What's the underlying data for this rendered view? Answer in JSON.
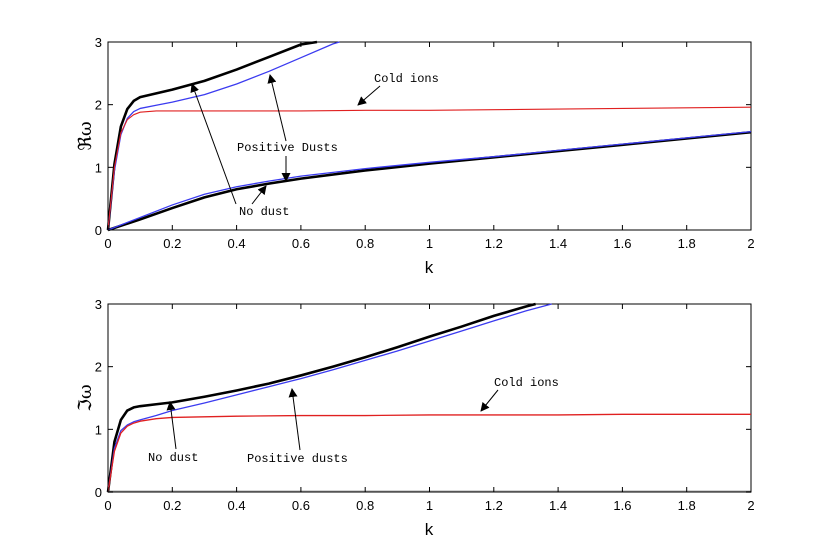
{
  "chart_data": [
    {
      "type": "line",
      "xlabel": "k",
      "ylabel": "ℜω",
      "xlim": [
        0,
        2
      ],
      "ylim": [
        0,
        3
      ],
      "xticks": [
        "0",
        "0.2",
        "0.4",
        "0.6",
        "0.8",
        "1",
        "1.2",
        "1.4",
        "1.6",
        "1.8",
        "2"
      ],
      "yticks": [
        "0",
        "1",
        "2",
        "3"
      ],
      "grid": false,
      "series": [
        {
          "color": "#000000",
          "x": [
            0,
            0.02,
            0.04,
            0.06,
            0.08,
            0.1,
            0.15,
            0.2,
            0.3,
            0.4,
            0.5,
            0.6,
            0.65
          ],
          "y": [
            0,
            1.05,
            1.65,
            1.93,
            2.06,
            2.12,
            2.18,
            2.24,
            2.38,
            2.56,
            2.76,
            2.96,
            3.0
          ]
        },
        {
          "color": "#3b3bf0",
          "x": [
            0,
            0.02,
            0.04,
            0.06,
            0.08,
            0.1,
            0.15,
            0.2,
            0.3,
            0.4,
            0.5,
            0.6,
            0.7,
            0.72
          ],
          "y": [
            0,
            0.95,
            1.52,
            1.78,
            1.89,
            1.94,
            1.99,
            2.04,
            2.16,
            2.33,
            2.53,
            2.75,
            2.97,
            3.0
          ]
        },
        {
          "color": "#e02020",
          "x": [
            0,
            0.02,
            0.04,
            0.06,
            0.08,
            0.1,
            0.15,
            0.2,
            0.4,
            0.6,
            0.8,
            1.0,
            1.2,
            1.4,
            1.6,
            1.8,
            2.0
          ],
          "y": [
            0,
            1.0,
            1.55,
            1.76,
            1.84,
            1.88,
            1.9,
            1.9,
            1.9,
            1.9,
            1.91,
            1.91,
            1.92,
            1.93,
            1.94,
            1.95,
            1.96
          ]
        },
        {
          "color": "#000000",
          "x": [
            0,
            0.1,
            0.2,
            0.3,
            0.4,
            0.5,
            0.6,
            0.8,
            1.0,
            1.2,
            1.4,
            1.6,
            1.8,
            2.0
          ],
          "y": [
            0,
            0.17,
            0.35,
            0.52,
            0.65,
            0.74,
            0.82,
            0.95,
            1.06,
            1.16,
            1.26,
            1.36,
            1.46,
            1.56
          ]
        },
        {
          "color": "#3b3bf0",
          "x": [
            0,
            0.1,
            0.2,
            0.3,
            0.4,
            0.5,
            0.6,
            0.8,
            1.0,
            1.2,
            1.4,
            1.6,
            1.8,
            2.0
          ],
          "y": [
            0,
            0.2,
            0.4,
            0.57,
            0.69,
            0.78,
            0.86,
            0.98,
            1.08,
            1.17,
            1.27,
            1.37,
            1.47,
            1.57
          ]
        }
      ],
      "annotations": [
        {
          "text": "Cold ions",
          "x": 0.95,
          "y": 2.55
        },
        {
          "text": "Positive Dusts",
          "x": 0.59,
          "y": 1.35
        },
        {
          "text": "No dust",
          "x": 0.44,
          "y": 0.28
        }
      ]
    },
    {
      "type": "line",
      "xlabel": "k",
      "ylabel": "ℑω",
      "xlim": [
        0,
        2
      ],
      "ylim": [
        0,
        3
      ],
      "xticks": [
        "0",
        "0.2",
        "0.4",
        "0.6",
        "0.8",
        "1",
        "1.2",
        "1.4",
        "1.6",
        "1.8",
        "2"
      ],
      "yticks": [
        "0",
        "1",
        "2",
        "3"
      ],
      "grid": false,
      "series": [
        {
          "color": "#000000",
          "x": [
            0,
            0.02,
            0.04,
            0.06,
            0.08,
            0.1,
            0.15,
            0.2,
            0.3,
            0.4,
            0.5,
            0.6,
            0.7,
            0.8,
            0.9,
            1.0,
            1.1,
            1.2,
            1.3,
            1.33
          ],
          "y": [
            0,
            0.8,
            1.15,
            1.3,
            1.35,
            1.37,
            1.4,
            1.43,
            1.52,
            1.62,
            1.73,
            1.86,
            2.0,
            2.15,
            2.31,
            2.48,
            2.64,
            2.81,
            2.96,
            3.0
          ]
        },
        {
          "color": "#3b3bf0",
          "x": [
            0,
            0.02,
            0.04,
            0.06,
            0.08,
            0.1,
            0.15,
            0.2,
            0.3,
            0.4,
            0.5,
            0.6,
            0.7,
            0.8,
            0.9,
            1.0,
            1.1,
            1.2,
            1.3,
            1.38
          ],
          "y": [
            0,
            0.7,
            0.98,
            1.07,
            1.12,
            1.15,
            1.22,
            1.3,
            1.42,
            1.55,
            1.68,
            1.81,
            1.95,
            2.1,
            2.25,
            2.41,
            2.57,
            2.73,
            2.89,
            3.0
          ]
        },
        {
          "color": "#e02020",
          "x": [
            0,
            0.02,
            0.04,
            0.06,
            0.08,
            0.1,
            0.15,
            0.2,
            0.4,
            0.6,
            0.8,
            1.0,
            1.2,
            1.4,
            1.6,
            1.8,
            2.0
          ],
          "y": [
            0,
            0.65,
            0.94,
            1.05,
            1.1,
            1.13,
            1.17,
            1.19,
            1.21,
            1.22,
            1.22,
            1.23,
            1.23,
            1.23,
            1.24,
            1.24,
            1.24
          ]
        },
        {
          "color": "#555555",
          "x": [
            0,
            2
          ],
          "y": [
            0.005,
            0.005
          ]
        }
      ],
      "annotations": [
        {
          "text": "Cold ions",
          "x": 1.3,
          "y": 1.77
        },
        {
          "text": "No dust",
          "x": 0.2,
          "y": 0.53
        },
        {
          "text": "Positive dusts",
          "x": 0.59,
          "y": 0.48
        }
      ]
    }
  ]
}
